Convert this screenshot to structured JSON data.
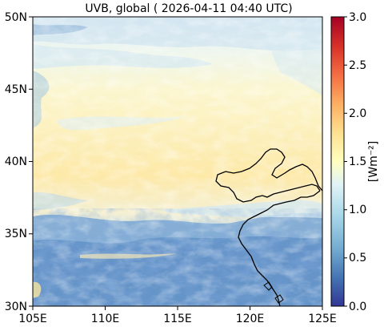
{
  "title": "UVB, global ( 2026-04-11 04:40 UTC)",
  "map": {
    "lon_ticks": [
      "105E",
      "110E",
      "115E",
      "120E",
      "125E"
    ],
    "lat_ticks": [
      "50N",
      "45N",
      "40N",
      "35N",
      "30N"
    ],
    "lon_range": [
      105,
      125
    ],
    "lat_range": [
      30,
      50
    ]
  },
  "colorbar": {
    "label": "[Wm⁻²]",
    "ticks": [
      "3.0",
      "2.5",
      "2.0",
      "1.5",
      "1.0",
      "0.5",
      "0.0"
    ],
    "range": [
      0.0,
      3.0
    ],
    "colormap": "RdYlBu_r",
    "colors": [
      "#313695",
      "#4575b4",
      "#74add1",
      "#abd9e9",
      "#e0f3f8",
      "#ffffbf",
      "#fee090",
      "#fdae61",
      "#f46d43",
      "#d73027",
      "#a50026"
    ]
  }
}
